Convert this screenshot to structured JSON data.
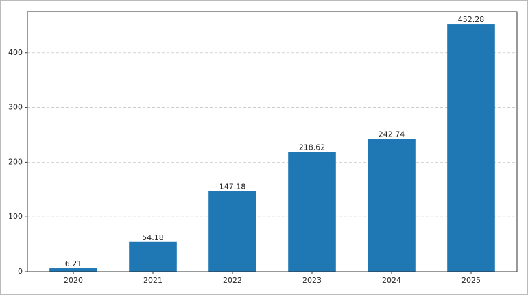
{
  "chart_data": {
    "type": "bar",
    "categories": [
      "2020",
      "2021",
      "2022",
      "2023",
      "2024",
      "2025"
    ],
    "values": [
      6.21,
      54.18,
      147.18,
      218.62,
      242.74,
      452.28
    ],
    "color": "#1f77b4",
    "ylim": [
      0,
      474.9
    ],
    "yticks": [
      0,
      100,
      200,
      300,
      400
    ],
    "grid": true
  }
}
